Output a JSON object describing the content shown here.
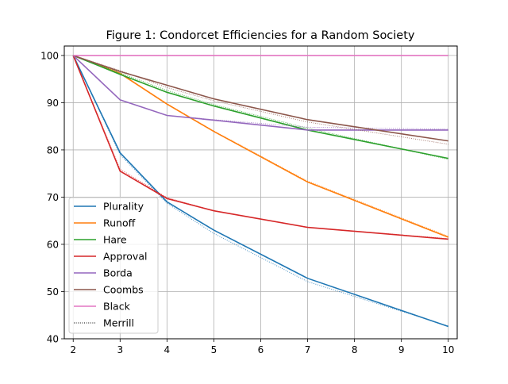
{
  "chart_data": {
    "type": "line",
    "title": "Figure 1: Condorcet Efficiencies for a Random Society",
    "xlabel": "",
    "ylabel": "",
    "xlim": [
      1.81,
      10.19
    ],
    "ylim": [
      40,
      102
    ],
    "xticks": [
      2,
      3,
      4,
      5,
      6,
      7,
      8,
      9,
      10
    ],
    "yticks": [
      40,
      50,
      60,
      70,
      80,
      90,
      100
    ],
    "grid": true,
    "legend_position": "lower-left",
    "x": [
      2,
      3,
      4,
      5,
      7,
      10
    ],
    "series": [
      {
        "name": "Plurality",
        "color": "#1f77b4",
        "values": [
          100,
          79.4,
          69.0,
          63.0,
          52.8,
          42.6
        ],
        "merrill": [
          100,
          79.0,
          68.7,
          62.3,
          52.1,
          42.7
        ]
      },
      {
        "name": "Runoff",
        "color": "#ff7f0e",
        "values": [
          100,
          96.2,
          89.7,
          83.9,
          73.2,
          61.5
        ],
        "merrill": [
          100,
          96.3,
          89.8,
          84.0,
          73.4,
          61.7
        ]
      },
      {
        "name": "Hare",
        "color": "#2ca02c",
        "values": [
          100,
          96.0,
          92.2,
          89.3,
          84.2,
          78.2
        ],
        "merrill": [
          100,
          96.3,
          92.6,
          89.6,
          84.6,
          78.0
        ]
      },
      {
        "name": "Approval",
        "color": "#d62728",
        "values": [
          100,
          75.5,
          69.7,
          67.1,
          63.6,
          61.1
        ],
        "merrill": [
          100,
          75.9,
          69.9,
          67.1,
          63.6,
          61.2
        ]
      },
      {
        "name": "Borda",
        "color": "#9467bd",
        "values": [
          100,
          90.6,
          87.3,
          86.3,
          84.2,
          84.2
        ],
        "merrill": [
          100,
          90.6,
          87.3,
          86.4,
          84.8,
          84.4
        ]
      },
      {
        "name": "Coombs",
        "color": "#8c564b",
        "values": [
          100,
          96.6,
          93.7,
          90.8,
          86.4,
          81.9
        ],
        "merrill": [
          100,
          96.8,
          93.2,
          90.4,
          85.9,
          81.2
        ]
      },
      {
        "name": "Black",
        "color": "#e377c2",
        "values": [
          100,
          100,
          100,
          100,
          100,
          100
        ],
        "merrill": [
          100,
          100,
          100,
          100,
          100,
          100
        ]
      }
    ],
    "legend": [
      "Plurality",
      "Runoff",
      "Hare",
      "Approval",
      "Borda",
      "Coombs",
      "Black",
      "Merrill"
    ],
    "merrill_legend_color": "#000000"
  }
}
